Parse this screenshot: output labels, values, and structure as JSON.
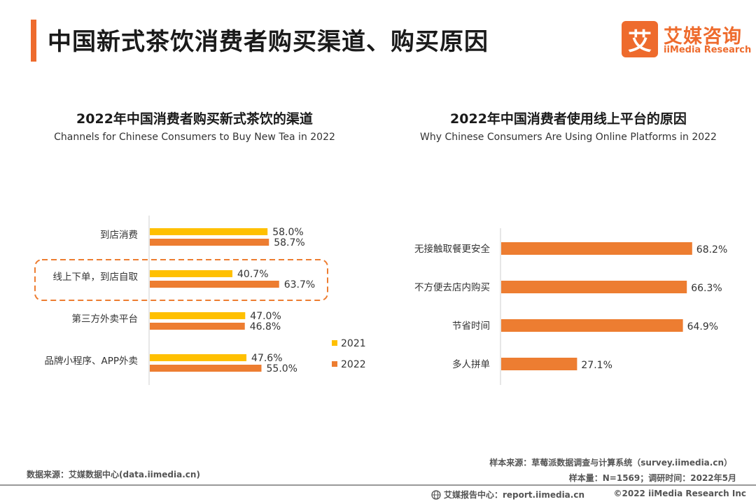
{
  "header": {
    "title": "中国新式茶饮消费者购买渠道、购买原因",
    "logo_mark": "艾",
    "logo_cn": "艾媒咨询",
    "logo_en": "iiMedia Research"
  },
  "chart_data": [
    {
      "type": "bar",
      "orientation": "horizontal",
      "title": "2022年中国消费者购买新式茶饮的渠道",
      "subtitle": "Channels for Chinese Consumers to Buy New Tea in 2022",
      "categories": [
        "到店消费",
        "线上下单，到店自取",
        "第三方外卖平台",
        "品牌小程序、APP外卖"
      ],
      "series": [
        {
          "name": "2021",
          "values": [
            58.0,
            40.7,
            47.0,
            47.6
          ],
          "labels": [
            "58.0%",
            "40.7%",
            "47.0%",
            "47.6%"
          ],
          "color": "#ffc000"
        },
        {
          "name": "2022",
          "values": [
            58.7,
            63.7,
            46.8,
            55.0
          ],
          "labels": [
            "58.7%",
            "63.7%",
            "46.8%",
            "55.0%"
          ],
          "color": "#ed7d31"
        }
      ],
      "highlighted_category": "线上下单，到店自取",
      "legend_position": "right",
      "grid": false
    },
    {
      "type": "bar",
      "orientation": "horizontal",
      "title": "2022年中国消费者使用线上平台的原因",
      "subtitle": "Why Chinese Consumers Are Using Online Platforms in 2022",
      "categories": [
        "无接触取餐更安全",
        "不方便去店内购买",
        "节省时间",
        "多人拼单"
      ],
      "values": [
        68.2,
        66.3,
        64.9,
        27.1
      ],
      "labels": [
        "68.2%",
        "66.3%",
        "64.9%",
        "27.1%"
      ],
      "color": "#ed7d31",
      "grid": false
    }
  ],
  "footer": {
    "data_source": "数据来源：艾媒数据中心(data.iimedia.cn)",
    "sample_source": "样本来源：草莓派数据调查与计算系统（survey.iimedia.cn）",
    "sample_info": "样本量：N=1569；调研时间：2022年5月",
    "report_center": "艾媒报告中心：report.iimedia.cn",
    "copyright": "©2022  iiMedia Research  Inc"
  }
}
